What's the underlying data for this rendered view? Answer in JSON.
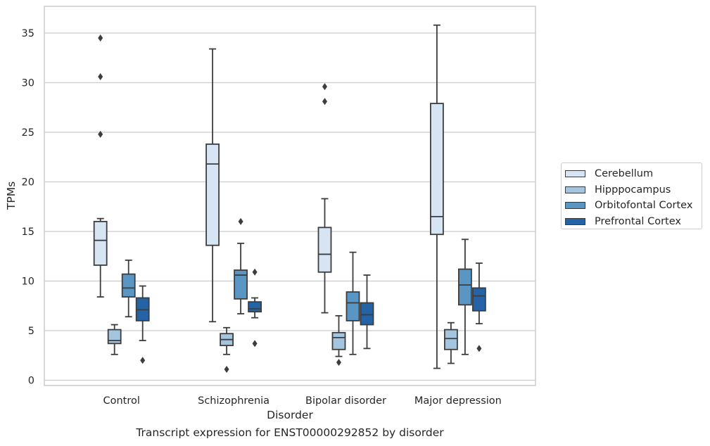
{
  "chart_data": {
    "type": "box",
    "xlabel": "Disorder",
    "ylabel": "TPMs",
    "ylim": [
      -0.4,
      37.2
    ],
    "yticks": [
      0,
      5,
      10,
      15,
      20,
      25,
      30,
      35
    ],
    "grid": true,
    "legend_position": "right",
    "caption": "Transcript expression for ENST00000292852 by disorder",
    "categories": [
      "Control",
      "Schizophrenia",
      "Bipolar disorder",
      "Major depression"
    ],
    "series": [
      {
        "name": "Cerebellum",
        "color": "#d6e4f3",
        "boxes": [
          {
            "whisker_low": 8.4,
            "q1": 11.6,
            "median": 14.1,
            "q3": 16.0,
            "whisker_high": 16.3,
            "outliers": [
              24.8,
              30.6,
              34.5
            ]
          },
          {
            "whisker_low": 5.9,
            "q1": 13.6,
            "median": 21.8,
            "q3": 23.8,
            "whisker_high": 33.4,
            "outliers": []
          },
          {
            "whisker_low": 6.8,
            "q1": 10.9,
            "median": 12.7,
            "q3": 15.4,
            "whisker_high": 18.3,
            "outliers": [
              28.1,
              29.6
            ]
          },
          {
            "whisker_low": 1.2,
            "q1": 14.7,
            "median": 16.5,
            "q3": 27.9,
            "whisker_high": 35.8,
            "outliers": []
          }
        ]
      },
      {
        "name": "Hipppocampus",
        "color": "#a3c6de",
        "boxes": [
          {
            "whisker_low": 2.6,
            "q1": 3.7,
            "median": 4.0,
            "q3": 5.1,
            "whisker_high": 5.6,
            "outliers": []
          },
          {
            "whisker_low": 2.6,
            "q1": 3.5,
            "median": 4.1,
            "q3": 4.7,
            "whisker_high": 5.3,
            "outliers": [
              1.1
            ]
          },
          {
            "whisker_low": 2.4,
            "q1": 3.1,
            "median": 4.3,
            "q3": 4.8,
            "whisker_high": 6.5,
            "outliers": [
              1.8
            ]
          },
          {
            "whisker_low": 1.7,
            "q1": 3.1,
            "median": 4.2,
            "q3": 5.1,
            "whisker_high": 5.8,
            "outliers": []
          }
        ]
      },
      {
        "name": "Orbitofontal Cortex",
        "color": "#5a96c4",
        "boxes": [
          {
            "whisker_low": 6.4,
            "q1": 8.4,
            "median": 9.3,
            "q3": 10.7,
            "whisker_high": 12.1,
            "outliers": []
          },
          {
            "whisker_low": 6.7,
            "q1": 8.2,
            "median": 10.6,
            "q3": 11.1,
            "whisker_high": 13.8,
            "outliers": [
              16.0
            ]
          },
          {
            "whisker_low": 2.6,
            "q1": 6.0,
            "median": 7.8,
            "q3": 8.9,
            "whisker_high": 12.9,
            "outliers": []
          },
          {
            "whisker_low": 2.6,
            "q1": 7.6,
            "median": 9.6,
            "q3": 11.2,
            "whisker_high": 14.2,
            "outliers": []
          }
        ]
      },
      {
        "name": "Prefrontal Cortex",
        "color": "#2463a6",
        "boxes": [
          {
            "whisker_low": 4.0,
            "q1": 6.0,
            "median": 7.1,
            "q3": 8.3,
            "whisker_high": 9.5,
            "outliers": [
              2.0
            ]
          },
          {
            "whisker_low": 6.3,
            "q1": 6.9,
            "median": 7.2,
            "q3": 7.9,
            "whisker_high": 8.3,
            "outliers": [
              3.7,
              10.9
            ]
          },
          {
            "whisker_low": 3.2,
            "q1": 5.6,
            "median": 6.6,
            "q3": 7.8,
            "whisker_high": 10.6,
            "outliers": []
          },
          {
            "whisker_low": 5.7,
            "q1": 7.0,
            "median": 8.5,
            "q3": 9.3,
            "whisker_high": 11.8,
            "outliers": [
              3.2
            ]
          }
        ]
      }
    ]
  }
}
